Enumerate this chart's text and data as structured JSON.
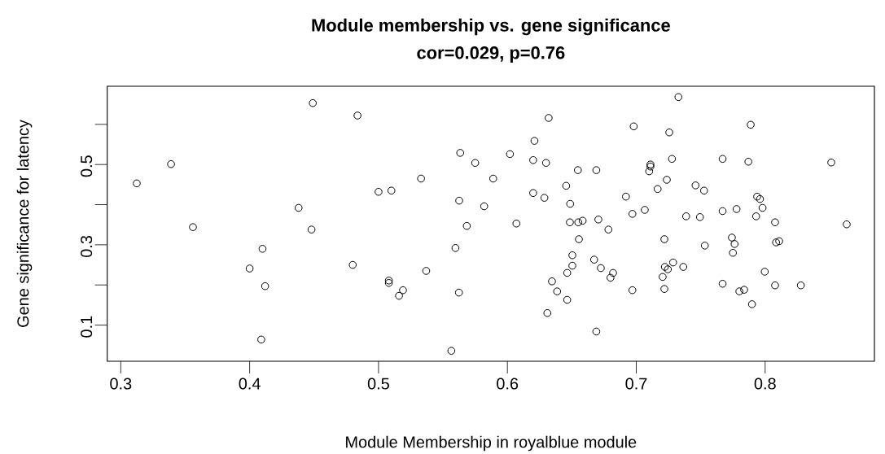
{
  "chart_data": {
    "type": "scatter",
    "title": "Module membership vs. gene significance",
    "subtitle": "cor=0.029, p=0.76",
    "xlabel": "Module Membership in royalblue module",
    "ylabel": "Gene significance for latency",
    "x": [
      0.3124,
      0.339,
      0.356,
      0.449,
      0.438,
      0.448,
      0.41,
      0.4,
      0.412,
      0.409,
      0.4837,
      0.632,
      0.621,
      0.5634,
      0.602,
      0.575,
      0.62,
      0.63,
      0.6547,
      0.669,
      0.533,
      0.589,
      0.6456,
      0.5,
      0.51,
      0.62,
      0.6287,
      0.5626,
      0.6487,
      0.582,
      0.6485,
      0.655,
      0.6584,
      0.6706,
      0.6784,
      0.5685,
      0.607,
      0.6555,
      0.5597,
      0.48,
      0.537,
      0.508,
      0.508,
      0.519,
      0.5159,
      0.5624,
      0.6504,
      0.6504,
      0.6464,
      0.6673,
      0.6725,
      0.682,
      0.68,
      0.6346,
      0.6386,
      0.6464,
      0.631,
      0.669,
      0.5565,
      0.7327,
      0.698,
      0.7888,
      0.7256,
      0.7277,
      0.767,
      0.787,
      0.8513,
      0.711,
      0.711,
      0.71,
      0.7237,
      0.7166,
      0.746,
      0.7526,
      0.692,
      0.7938,
      0.796,
      0.798,
      0.7066,
      0.697,
      0.767,
      0.7778,
      0.7387,
      0.7494,
      0.793,
      0.8077,
      0.8633,
      0.7218,
      0.7532,
      0.7742,
      0.7763,
      0.775,
      0.8085,
      0.8109,
      0.7222,
      0.7286,
      0.7245,
      0.7365,
      0.7205,
      0.7218,
      0.697,
      0.7997,
      0.767,
      0.78,
      0.7837,
      0.8077,
      0.8277,
      0.7898
    ],
    "values": [
      0.453,
      0.501,
      0.344,
      0.653,
      0.392,
      0.338,
      0.29,
      0.241,
      0.197,
      0.064,
      0.622,
      0.616,
      0.559,
      0.529,
      0.526,
      0.504,
      0.511,
      0.504,
      0.486,
      0.486,
      0.465,
      0.465,
      0.447,
      0.432,
      0.435,
      0.429,
      0.417,
      0.41,
      0.402,
      0.396,
      0.356,
      0.356,
      0.36,
      0.363,
      0.338,
      0.347,
      0.353,
      0.314,
      0.292,
      0.25,
      0.235,
      0.211,
      0.205,
      0.187,
      0.173,
      0.181,
      0.274,
      0.248,
      0.23,
      0.263,
      0.242,
      0.23,
      0.218,
      0.209,
      0.184,
      0.163,
      0.13,
      0.084,
      0.036,
      0.668,
      0.595,
      0.599,
      0.58,
      0.514,
      0.514,
      0.507,
      0.505,
      0.5,
      0.495,
      0.483,
      0.462,
      0.439,
      0.448,
      0.435,
      0.42,
      0.42,
      0.414,
      0.392,
      0.387,
      0.377,
      0.384,
      0.389,
      0.371,
      0.369,
      0.371,
      0.356,
      0.351,
      0.314,
      0.298,
      0.318,
      0.302,
      0.28,
      0.306,
      0.309,
      0.245,
      0.256,
      0.239,
      0.245,
      0.22,
      0.19,
      0.187,
      0.233,
      0.203,
      0.184,
      0.188,
      0.199,
      0.199,
      0.152
    ],
    "color": "#000000",
    "marker": "circle",
    "xlim": [
      0.2895,
      0.8848
    ],
    "ylim": [
      0.01,
      0.695
    ],
    "xticks": [
      0.3,
      0.4,
      0.5,
      0.6,
      0.7,
      0.8
    ],
    "yticks": [
      0.1,
      {
        "value": 0.2,
        "label": null
      },
      0.3,
      {
        "value": 0.4,
        "label": null
      },
      0.5,
      {
        "value": 0.6,
        "label": null
      }
    ]
  }
}
